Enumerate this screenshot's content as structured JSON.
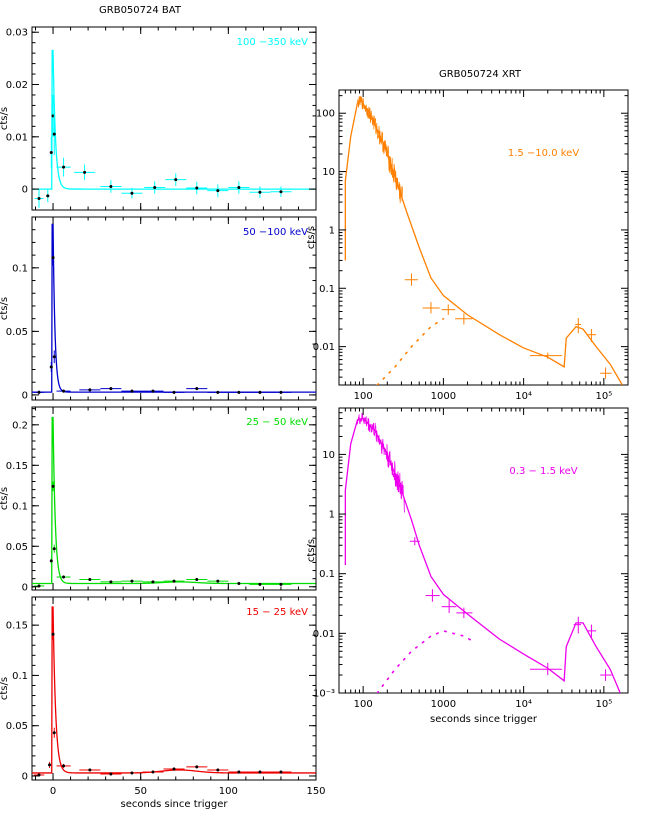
{
  "bat_title": "GRB050724 BAT",
  "xrt_title": "GRB050724 XRT",
  "chart_data": [
    {
      "type": "scatter",
      "title": "GRB050724 BAT",
      "band_label": "100 −350 keV",
      "color": "#00ffff",
      "ylabel": "cts/s",
      "xlabel": "",
      "xlim": [
        -12,
        150
      ],
      "ylim": [
        -0.004,
        0.031
      ],
      "yticks": [
        0,
        0.01,
        0.02,
        0.03
      ],
      "ytick_labels": [
        "0",
        "0.01",
        "0.02",
        "0.03"
      ],
      "xticks": [
        0,
        50,
        100,
        150
      ],
      "xtick_labels": [],
      "points": [
        {
          "x": -8,
          "xerr": 2.5,
          "y": -0.0018,
          "yerr": 0.0018
        },
        {
          "x": -3,
          "xerr": 1,
          "y": -0.0013,
          "yerr": 0.0012
        },
        {
          "x": -1,
          "xerr": 0.4,
          "y": 0.007,
          "yerr": 0.003
        },
        {
          "x": 0,
          "xerr": 0.3,
          "y": 0.014,
          "yerr": 0.004
        },
        {
          "x": 0.7,
          "xerr": 0.3,
          "y": 0.0105,
          "yerr": 0.004
        },
        {
          "x": 6,
          "xerr": 4,
          "y": 0.0042,
          "yerr": 0.0018
        },
        {
          "x": 18,
          "xerr": 6,
          "y": 0.0032,
          "yerr": 0.0015
        },
        {
          "x": 33,
          "xerr": 6,
          "y": 0.0005,
          "yerr": 0.0012
        },
        {
          "x": 45,
          "xerr": 6,
          "y": -0.0008,
          "yerr": 0.001
        },
        {
          "x": 58,
          "xerr": 6,
          "y": 0.0003,
          "yerr": 0.0012
        },
        {
          "x": 70,
          "xerr": 6,
          "y": 0.0018,
          "yerr": 0.0012
        },
        {
          "x": 82,
          "xerr": 6,
          "y": 0.0002,
          "yerr": 0.0012
        },
        {
          "x": 94,
          "xerr": 6,
          "y": -0.0003,
          "yerr": 0.0012
        },
        {
          "x": 106,
          "xerr": 6,
          "y": 0.0003,
          "yerr": 0.0012
        },
        {
          "x": 118,
          "xerr": 6,
          "y": -0.0006,
          "yerr": 0.0011
        },
        {
          "x": 130,
          "xerr": 6,
          "y": -0.0005,
          "yerr": 0.001
        }
      ],
      "model": {
        "base": 0,
        "peak": 0.0265,
        "tau": 1.4,
        "hump": 0
      }
    },
    {
      "type": "scatter",
      "band_label": "50 −100 keV",
      "color": "#0000cc",
      "ylabel": "cts/s",
      "xlabel": "",
      "xlim": [
        -12,
        150
      ],
      "ylim": [
        -0.004,
        0.14
      ],
      "yticks": [
        0,
        0.05,
        0.1
      ],
      "ytick_labels": [
        "0",
        "0.05",
        "0.1"
      ],
      "xticks": [
        0,
        50,
        100,
        150
      ],
      "xtick_labels": [],
      "points": [
        {
          "x": -8,
          "xerr": 3,
          "y": 0.002,
          "yerr": 0.0015
        },
        {
          "x": -1,
          "xerr": 0.3,
          "y": 0.022,
          "yerr": 0.004
        },
        {
          "x": 0,
          "xerr": 0.3,
          "y": 0.108,
          "yerr": 0.006
        },
        {
          "x": 0.7,
          "xerr": 0.3,
          "y": 0.03,
          "yerr": 0.005
        },
        {
          "x": 6,
          "xerr": 4,
          "y": 0.003,
          "yerr": 0.0012
        },
        {
          "x": 21,
          "xerr": 6,
          "y": 0.004,
          "yerr": 0.0012
        },
        {
          "x": 33,
          "xerr": 6,
          "y": 0.005,
          "yerr": 0.0012
        },
        {
          "x": 45,
          "xerr": 6,
          "y": 0.003,
          "yerr": 0.0012
        },
        {
          "x": 57,
          "xerr": 6,
          "y": 0.003,
          "yerr": 0.0012
        },
        {
          "x": 69,
          "xerr": 6,
          "y": 0.002,
          "yerr": 0.0012
        },
        {
          "x": 82,
          "xerr": 6,
          "y": 0.005,
          "yerr": 0.0012
        },
        {
          "x": 94,
          "xerr": 6,
          "y": 0.002,
          "yerr": 0.0012
        },
        {
          "x": 106,
          "xerr": 6,
          "y": 0.002,
          "yerr": 0.0012
        },
        {
          "x": 118,
          "xerr": 6,
          "y": 0.002,
          "yerr": 0.0012
        },
        {
          "x": 130,
          "xerr": 6,
          "y": 0.002,
          "yerr": 0.0012
        }
      ],
      "model": {
        "base": 0.0022,
        "peak": 0.132,
        "tau": 1.1,
        "hump": 0
      }
    },
    {
      "type": "scatter",
      "band_label": "25 − 50 keV",
      "color": "#00dd00",
      "ylabel": "cts/s",
      "xlabel": "",
      "xlim": [
        -12,
        150
      ],
      "ylim": [
        -0.004,
        0.222
      ],
      "yticks": [
        0,
        0.05,
        0.1,
        0.15,
        0.2
      ],
      "ytick_labels": [
        "0",
        "0.05",
        "0.1",
        "0.15",
        "0.2"
      ],
      "xticks": [
        0,
        50,
        100,
        150
      ],
      "xtick_labels": [],
      "points": [
        {
          "x": -8,
          "xerr": 3,
          "y": 0.001,
          "yerr": 0.0015
        },
        {
          "x": -1,
          "xerr": 0.3,
          "y": 0.032,
          "yerr": 0.004
        },
        {
          "x": 0,
          "xerr": 0.3,
          "y": 0.124,
          "yerr": 0.006
        },
        {
          "x": 0.7,
          "xerr": 0.3,
          "y": 0.047,
          "yerr": 0.005
        },
        {
          "x": 6,
          "xerr": 4,
          "y": 0.012,
          "yerr": 0.002
        },
        {
          "x": 21,
          "xerr": 6,
          "y": 0.009,
          "yerr": 0.0015
        },
        {
          "x": 33,
          "xerr": 6,
          "y": 0.006,
          "yerr": 0.0015
        },
        {
          "x": 45,
          "xerr": 6,
          "y": 0.007,
          "yerr": 0.0015
        },
        {
          "x": 57,
          "xerr": 6,
          "y": 0.006,
          "yerr": 0.0015
        },
        {
          "x": 69,
          "xerr": 6,
          "y": 0.007,
          "yerr": 0.0015
        },
        {
          "x": 82,
          "xerr": 6,
          "y": 0.009,
          "yerr": 0.0015
        },
        {
          "x": 94,
          "xerr": 6,
          "y": 0.007,
          "yerr": 0.0015
        },
        {
          "x": 106,
          "xerr": 6,
          "y": 0.004,
          "yerr": 0.0015
        },
        {
          "x": 118,
          "xerr": 6,
          "y": 0.003,
          "yerr": 0.0015
        },
        {
          "x": 130,
          "xerr": 6,
          "y": 0.003,
          "yerr": 0.0015
        }
      ],
      "model": {
        "base": 0.004,
        "peak": 0.205,
        "tau": 1.3,
        "hump": 0.002
      }
    },
    {
      "type": "scatter",
      "band_label": "15 − 25 keV",
      "color": "#ee0000",
      "ylabel": "cts/s",
      "xlabel": "seconds since trigger",
      "xlim": [
        -12,
        150
      ],
      "ylim": [
        -0.004,
        0.178
      ],
      "yticks": [
        0,
        0.05,
        0.1,
        0.15
      ],
      "ytick_labels": [
        "0",
        "0.05",
        "0.1",
        "0.15"
      ],
      "xticks": [
        0,
        50,
        100,
        150
      ],
      "xtick_labels": [
        "0",
        "50",
        "100",
        "150"
      ],
      "points": [
        {
          "x": -8,
          "xerr": 3,
          "y": 0.001,
          "yerr": 0.0015
        },
        {
          "x": -2,
          "xerr": 0.4,
          "y": 0.011,
          "yerr": 0.003
        },
        {
          "x": 0,
          "xerr": 0.3,
          "y": 0.141,
          "yerr": 0.006
        },
        {
          "x": 0.7,
          "xerr": 0.3,
          "y": 0.043,
          "yerr": 0.005
        },
        {
          "x": 6,
          "xerr": 4,
          "y": 0.01,
          "yerr": 0.002
        },
        {
          "x": 21,
          "xerr": 6,
          "y": 0.006,
          "yerr": 0.0015
        },
        {
          "x": 33,
          "xerr": 6,
          "y": 0.002,
          "yerr": 0.0015
        },
        {
          "x": 45,
          "xerr": 6,
          "y": 0.003,
          "yerr": 0.0015
        },
        {
          "x": 57,
          "xerr": 6,
          "y": 0.004,
          "yerr": 0.0015
        },
        {
          "x": 69,
          "xerr": 6,
          "y": 0.007,
          "yerr": 0.0015
        },
        {
          "x": 82,
          "xerr": 6,
          "y": 0.009,
          "yerr": 0.0015
        },
        {
          "x": 94,
          "xerr": 6,
          "y": 0.006,
          "yerr": 0.0015
        },
        {
          "x": 106,
          "xerr": 6,
          "y": 0.004,
          "yerr": 0.0015
        },
        {
          "x": 118,
          "xerr": 6,
          "y": 0.004,
          "yerr": 0.0015
        },
        {
          "x": 130,
          "xerr": 6,
          "y": 0.004,
          "yerr": 0.0015
        }
      ],
      "model": {
        "base": 0.003,
        "peak": 0.165,
        "tau": 1.5,
        "hump": 0.003
      }
    },
    {
      "type": "line",
      "title": "GRB050724 XRT",
      "band_label": "1.5 −10.0 keV",
      "color": "#ff8000",
      "ylabel": "cts/s",
      "xlabel": "",
      "xscale": "log",
      "yscale": "log",
      "xlim": [
        50,
        200000
      ],
      "ylim": [
        0.0022,
        250
      ],
      "xticks": [
        100,
        1000,
        10000,
        100000
      ],
      "xtick_labels": [
        "100",
        "1000",
        "10⁴",
        "10⁵"
      ],
      "yticks": [
        0.01,
        0.1,
        1,
        10,
        100
      ],
      "ytick_labels": [
        "0.01",
        "0.1",
        "1",
        "10",
        "100"
      ],
      "curve": [
        [
          60,
          0.3
        ],
        [
          60,
          7
        ],
        [
          70,
          40
        ],
        [
          85,
          150
        ],
        [
          95,
          160
        ],
        [
          120,
          100
        ],
        [
          180,
          30
        ],
        [
          250,
          8
        ],
        [
          350,
          2
        ],
        [
          500,
          0.5
        ],
        [
          700,
          0.15
        ],
        [
          1000,
          0.075
        ],
        [
          2000,
          0.035
        ],
        [
          5000,
          0.016
        ],
        [
          10000,
          0.0095
        ],
        [
          20000,
          0.0066
        ],
        [
          32000,
          0.0045
        ],
        [
          34000,
          0.014
        ],
        [
          45000,
          0.022
        ],
        [
          55000,
          0.02
        ],
        [
          80000,
          0.01
        ],
        [
          120000,
          0.005
        ],
        [
          170000,
          0.0022
        ]
      ],
      "dotted": [
        [
          150,
          0.0022
        ],
        [
          250,
          0.0045
        ],
        [
          400,
          0.01
        ],
        [
          700,
          0.022
        ],
        [
          1000,
          0.03
        ]
      ],
      "noisy": [
        [
          85,
          0.18
        ],
        [
          310,
          0.22
        ]
      ],
      "points": [
        {
          "x": 400,
          "xlo": 330,
          "xhi": 480,
          "y": 0.14,
          "ylo": 0.11,
          "yhi": 0.18
        },
        {
          "x": 700,
          "xlo": 550,
          "xhi": 900,
          "y": 0.046,
          "ylo": 0.037,
          "yhi": 0.058
        },
        {
          "x": 1150,
          "xlo": 950,
          "xhi": 1400,
          "y": 0.043,
          "ylo": 0.035,
          "yhi": 0.053
        },
        {
          "x": 1800,
          "xlo": 1400,
          "xhi": 2300,
          "y": 0.03,
          "ylo": 0.024,
          "yhi": 0.037
        },
        {
          "x": 20000,
          "xlo": 12000,
          "xhi": 30000,
          "y": 0.007,
          "ylo": 0.0062,
          "yhi": 0.0079
        },
        {
          "x": 48000,
          "xlo": 44000,
          "xhi": 52000,
          "y": 0.024,
          "ylo": 0.017,
          "yhi": 0.031
        },
        {
          "x": 70000,
          "xlo": 62000,
          "xhi": 80000,
          "y": 0.016,
          "ylo": 0.012,
          "yhi": 0.02
        },
        {
          "x": 105000,
          "xlo": 90000,
          "xhi": 125000,
          "y": 0.0035,
          "ylo": 0.0028,
          "yhi": 0.0044
        }
      ]
    },
    {
      "type": "line",
      "band_label": "0.3 − 1.5 keV",
      "color": "#ee00ee",
      "ylabel": "cts/s",
      "xlabel": "seconds since trigger",
      "xscale": "log",
      "yscale": "log",
      "xlim": [
        50,
        200000
      ],
      "ylim": [
        0.001,
        60
      ],
      "xticks": [
        100,
        1000,
        10000,
        100000
      ],
      "xtick_labels": [
        "100",
        "1000",
        "10⁴",
        "10⁵"
      ],
      "yticks": [
        0.001,
        0.01,
        0.1,
        1,
        10
      ],
      "ytick_labels": [
        "10⁻³",
        "0.01",
        "0.1",
        "1",
        "10"
      ],
      "curve": [
        [
          60,
          0.14
        ],
        [
          60,
          2.5
        ],
        [
          70,
          15
        ],
        [
          85,
          38
        ],
        [
          100,
          40
        ],
        [
          140,
          25
        ],
        [
          200,
          10
        ],
        [
          300,
          2.5
        ],
        [
          400,
          0.8
        ],
        [
          500,
          0.3
        ],
        [
          700,
          0.09
        ],
        [
          1000,
          0.045
        ],
        [
          2000,
          0.021
        ],
        [
          5000,
          0.008
        ],
        [
          10000,
          0.0045
        ],
        [
          20000,
          0.0026
        ],
        [
          32000,
          0.0016
        ],
        [
          34000,
          0.006
        ],
        [
          45000,
          0.015
        ],
        [
          55000,
          0.015
        ],
        [
          80000,
          0.006
        ],
        [
          120000,
          0.0025
        ],
        [
          160000,
          0.001
        ]
      ],
      "dotted": [
        [
          150,
          0.001
        ],
        [
          250,
          0.0025
        ],
        [
          400,
          0.005
        ],
        [
          700,
          0.009
        ],
        [
          1000,
          0.011
        ],
        [
          1800,
          0.009
        ],
        [
          2500,
          0.007
        ]
      ],
      "noisy": [
        [
          85,
          0.25
        ],
        [
          330,
          0.2
        ]
      ],
      "points": [
        {
          "x": 440,
          "xlo": 380,
          "xhi": 510,
          "y": 0.35,
          "ylo": 0.3,
          "yhi": 0.41
        },
        {
          "x": 730,
          "xlo": 600,
          "xhi": 900,
          "y": 0.043,
          "ylo": 0.034,
          "yhi": 0.055
        },
        {
          "x": 1180,
          "xlo": 950,
          "xhi": 1450,
          "y": 0.028,
          "ylo": 0.022,
          "yhi": 0.036
        },
        {
          "x": 1800,
          "xlo": 1450,
          "xhi": 2300,
          "y": 0.022,
          "ylo": 0.018,
          "yhi": 0.027
        },
        {
          "x": 20000,
          "xlo": 12000,
          "xhi": 30000,
          "y": 0.0025,
          "ylo": 0.002,
          "yhi": 0.0032
        },
        {
          "x": 48000,
          "xlo": 42000,
          "xhi": 52000,
          "y": 0.014,
          "ylo": 0.01,
          "yhi": 0.019
        },
        {
          "x": 70000,
          "xlo": 62000,
          "xhi": 80000,
          "y": 0.011,
          "ylo": 0.0085,
          "yhi": 0.014
        },
        {
          "x": 105000,
          "xlo": 90000,
          "xhi": 125000,
          "y": 0.002,
          "ylo": 0.0016,
          "yhi": 0.0025
        }
      ]
    }
  ]
}
